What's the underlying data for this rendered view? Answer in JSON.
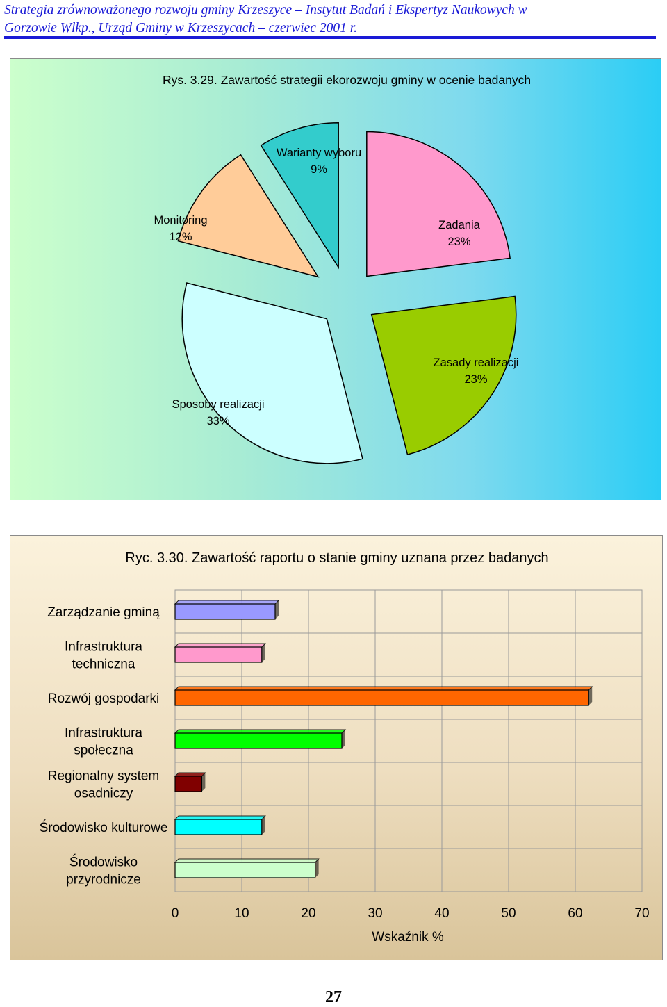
{
  "header": {
    "line1": "Strategia zrównoważonego rozwoju gminy Krzeszyce – Instytut Badań i Ekspertyz Naukowych w",
    "line2": "Gorzowie Wlkp., Urząd  Gminy w Krzeszycach   – czerwiec  2001 r."
  },
  "chart_data": [
    {
      "type": "pie",
      "title": "Rys. 3.29. Zawartość strategii ekorozwoju gminy w ocenie badanych",
      "slices": [
        {
          "label": "Zadania",
          "value": 23,
          "value_label": "23%",
          "color": "#ff99cc"
        },
        {
          "label": "Zasady realizacji",
          "value": 23,
          "value_label": "23%",
          "color": "#99cc00"
        },
        {
          "label": "Sposoby realizacji",
          "value": 33,
          "value_label": "33%",
          "color": "#ccffff"
        },
        {
          "label": "Monitoring",
          "value": 12,
          "value_label": "12%",
          "color": "#ffcc99"
        },
        {
          "label": "Warianty wyboru",
          "value": 9,
          "value_label": "9%",
          "color": "#33cccc"
        }
      ]
    },
    {
      "type": "bar",
      "orientation": "horizontal",
      "title": "Ryc. 3.30. Zawartość raportu o stanie gminy  uznana przez badanych",
      "categories": [
        [
          "Zarządzanie gminą"
        ],
        [
          "Infrastruktura",
          "techniczna"
        ],
        [
          "Rozwój gospodarki"
        ],
        [
          "Infrastruktura",
          "społeczna"
        ],
        [
          "Regionalny system",
          "osadniczy"
        ],
        [
          "Środowisko kulturowe"
        ],
        [
          "Środowisko",
          "przyrodnicze"
        ]
      ],
      "values": [
        15,
        13,
        62,
        25,
        4,
        13,
        21
      ],
      "colors": [
        "#9999ff",
        "#ff99cc",
        "#ff6600",
        "#00ff00",
        "#800000",
        "#00ffff",
        "#ccffcc"
      ],
      "xlim": [
        0,
        70
      ],
      "xticks": [
        0,
        10,
        20,
        30,
        40,
        50,
        60,
        70
      ],
      "xlabel": "Wskaźnik %",
      "ylabel": "",
      "grid": true
    }
  ],
  "page_number": "27"
}
